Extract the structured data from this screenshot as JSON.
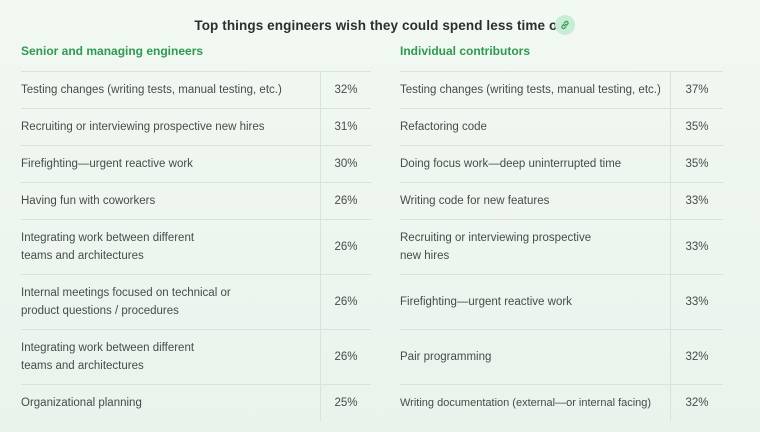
{
  "title": "Top things engineers wish they could spend less time on",
  "link_icon": "link-icon",
  "accent_color": "#2e9a4e",
  "senior": {
    "heading": "Senior and managing engineers",
    "rows": [
      {
        "label": "Testing changes (writing tests, manual testing, etc.)",
        "value": "32%"
      },
      {
        "label": "Recruiting or interviewing prospective new hires",
        "value": "31%"
      },
      {
        "label": "Firefighting—urgent reactive work",
        "value": "30%"
      },
      {
        "label": "Having fun with coworkers",
        "value": "26%"
      },
      {
        "label": "Integrating work between different teams and architectures",
        "value": "26%"
      },
      {
        "label": "Internal meetings focused on technical or product questions / procedures",
        "value": "26%"
      },
      {
        "label": "Integrating work between different teams and architectures",
        "value": "26%"
      },
      {
        "label": "Organizational planning",
        "value": "25%"
      }
    ]
  },
  "ic": {
    "heading": "Individual contributors",
    "rows": [
      {
        "label": "Testing changes (writing tests, manual testing, etc.)",
        "value": "37%"
      },
      {
        "label": "Refactoring code",
        "value": "35%"
      },
      {
        "label": "Doing focus work—deep uninterrupted time",
        "value": "35%"
      },
      {
        "label": "Writing code for new features",
        "value": "33%"
      },
      {
        "label": "Recruiting or interviewing prospective new hires",
        "value": "33%"
      },
      {
        "label": "Firefighting—urgent reactive work",
        "value": "33%"
      },
      {
        "label": "Pair programming",
        "value": "32%"
      },
      {
        "label": "Writing documentation (external—or internal facing)",
        "value": "32%"
      }
    ]
  }
}
